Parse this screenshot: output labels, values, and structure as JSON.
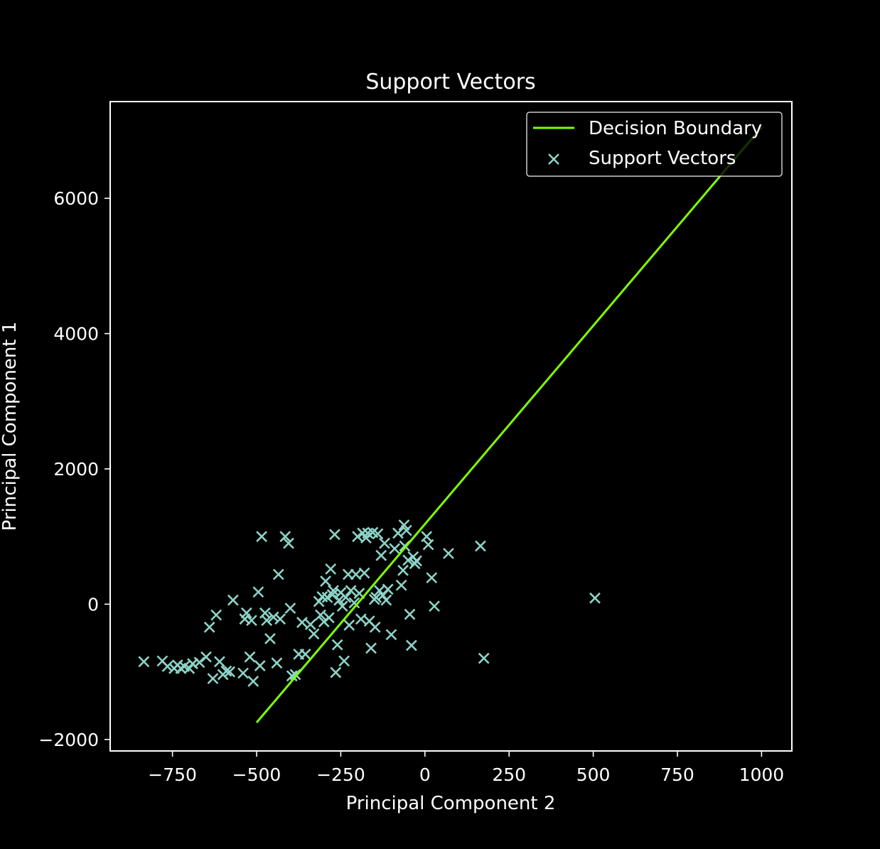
{
  "chart_data": {
    "type": "scatter",
    "title": "Support Vectors",
    "xlabel": "Principal Component 2",
    "ylabel": "Principal Component 1",
    "xlim": [
      -935,
      1090
    ],
    "ylim": [
      -2170,
      7430
    ],
    "xticks": [
      -750,
      -500,
      -250,
      0,
      250,
      500,
      750,
      1000
    ],
    "xtick_labels": [
      "−750",
      "−500",
      "−250",
      "0",
      "250",
      "500",
      "750",
      "1000"
    ],
    "yticks": [
      -2000,
      0,
      2000,
      4000,
      6000
    ],
    "ytick_labels": [
      "−2000",
      "0",
      "2000",
      "4000",
      "6000"
    ],
    "grid": false,
    "legend_position": "top-right",
    "background": "#000000",
    "foreground": "#ffffff",
    "series": [
      {
        "name": "Decision Boundary",
        "kind": "line",
        "color": "#7fff00",
        "x": [
          -500,
          1000
        ],
        "y": [
          -1750,
          7050
        ]
      },
      {
        "name": "Support Vectors",
        "kind": "scatter",
        "marker": "x",
        "color": "#8dd3c7",
        "points": [
          [
            -835,
            -850
          ],
          [
            -780,
            -840
          ],
          [
            -765,
            -920
          ],
          [
            -745,
            -950
          ],
          [
            -735,
            -900
          ],
          [
            -725,
            -950
          ],
          [
            -715,
            -920
          ],
          [
            -700,
            -950
          ],
          [
            -690,
            -880
          ],
          [
            -670,
            -860
          ],
          [
            -650,
            -780
          ],
          [
            -640,
            -340
          ],
          [
            -630,
            -1100
          ],
          [
            -620,
            -160
          ],
          [
            -610,
            -850
          ],
          [
            -600,
            -1040
          ],
          [
            -590,
            -990
          ],
          [
            -580,
            -1000
          ],
          [
            -570,
            60
          ],
          [
            -540,
            -1020
          ],
          [
            -535,
            -220
          ],
          [
            -530,
            -130
          ],
          [
            -520,
            -780
          ],
          [
            -515,
            -240
          ],
          [
            -510,
            -1140
          ],
          [
            -495,
            180
          ],
          [
            -490,
            -910
          ],
          [
            -485,
            1000
          ],
          [
            -475,
            -130
          ],
          [
            -470,
            -240
          ],
          [
            -460,
            -510
          ],
          [
            -450,
            -190
          ],
          [
            -440,
            -870
          ],
          [
            -435,
            440
          ],
          [
            -430,
            -220
          ],
          [
            -415,
            1000
          ],
          [
            -405,
            900
          ],
          [
            -400,
            -60
          ],
          [
            -395,
            -1060
          ],
          [
            -385,
            -1040
          ],
          [
            -375,
            -740
          ],
          [
            -365,
            -270
          ],
          [
            -355,
            -740
          ],
          [
            -340,
            -300
          ],
          [
            -330,
            -440
          ],
          [
            -315,
            40
          ],
          [
            -310,
            -160
          ],
          [
            -305,
            110
          ],
          [
            -300,
            -260
          ],
          [
            -295,
            340
          ],
          [
            -290,
            100
          ],
          [
            -285,
            -200
          ],
          [
            -280,
            520
          ],
          [
            -275,
            140
          ],
          [
            -272,
            200
          ],
          [
            -268,
            1030
          ],
          [
            -265,
            -1010
          ],
          [
            -260,
            -600
          ],
          [
            -255,
            60
          ],
          [
            -250,
            170
          ],
          [
            -245,
            -30
          ],
          [
            -240,
            -840
          ],
          [
            -235,
            100
          ],
          [
            -228,
            440
          ],
          [
            -225,
            -310
          ],
          [
            -220,
            200
          ],
          [
            -210,
            20
          ],
          [
            -205,
            440
          ],
          [
            -200,
            1000
          ],
          [
            -195,
            160
          ],
          [
            -190,
            -220
          ],
          [
            -185,
            1050
          ],
          [
            -180,
            460
          ],
          [
            -175,
            980
          ],
          [
            -170,
            1050
          ],
          [
            -165,
            -250
          ],
          [
            -160,
            -650
          ],
          [
            -155,
            1060
          ],
          [
            -150,
            70
          ],
          [
            -148,
            -340
          ],
          [
            -145,
            100
          ],
          [
            -140,
            1040
          ],
          [
            -135,
            200
          ],
          [
            -130,
            720
          ],
          [
            -125,
            130
          ],
          [
            -120,
            900
          ],
          [
            -115,
            60
          ],
          [
            -110,
            220
          ],
          [
            -100,
            -450
          ],
          [
            -90,
            820
          ],
          [
            -80,
            1050
          ],
          [
            -70,
            280
          ],
          [
            -65,
            500
          ],
          [
            -62,
            1170
          ],
          [
            -60,
            860
          ],
          [
            -55,
            1090
          ],
          [
            -50,
            650
          ],
          [
            -45,
            -150
          ],
          [
            -40,
            -610
          ],
          [
            -35,
            700
          ],
          [
            -30,
            600
          ],
          [
            -25,
            640
          ],
          [
            5,
            1000
          ],
          [
            10,
            880
          ],
          [
            20,
            390
          ],
          [
            28,
            -30
          ],
          [
            70,
            750
          ],
          [
            165,
            860
          ],
          [
            175,
            -800
          ],
          [
            505,
            90
          ]
        ]
      }
    ]
  }
}
